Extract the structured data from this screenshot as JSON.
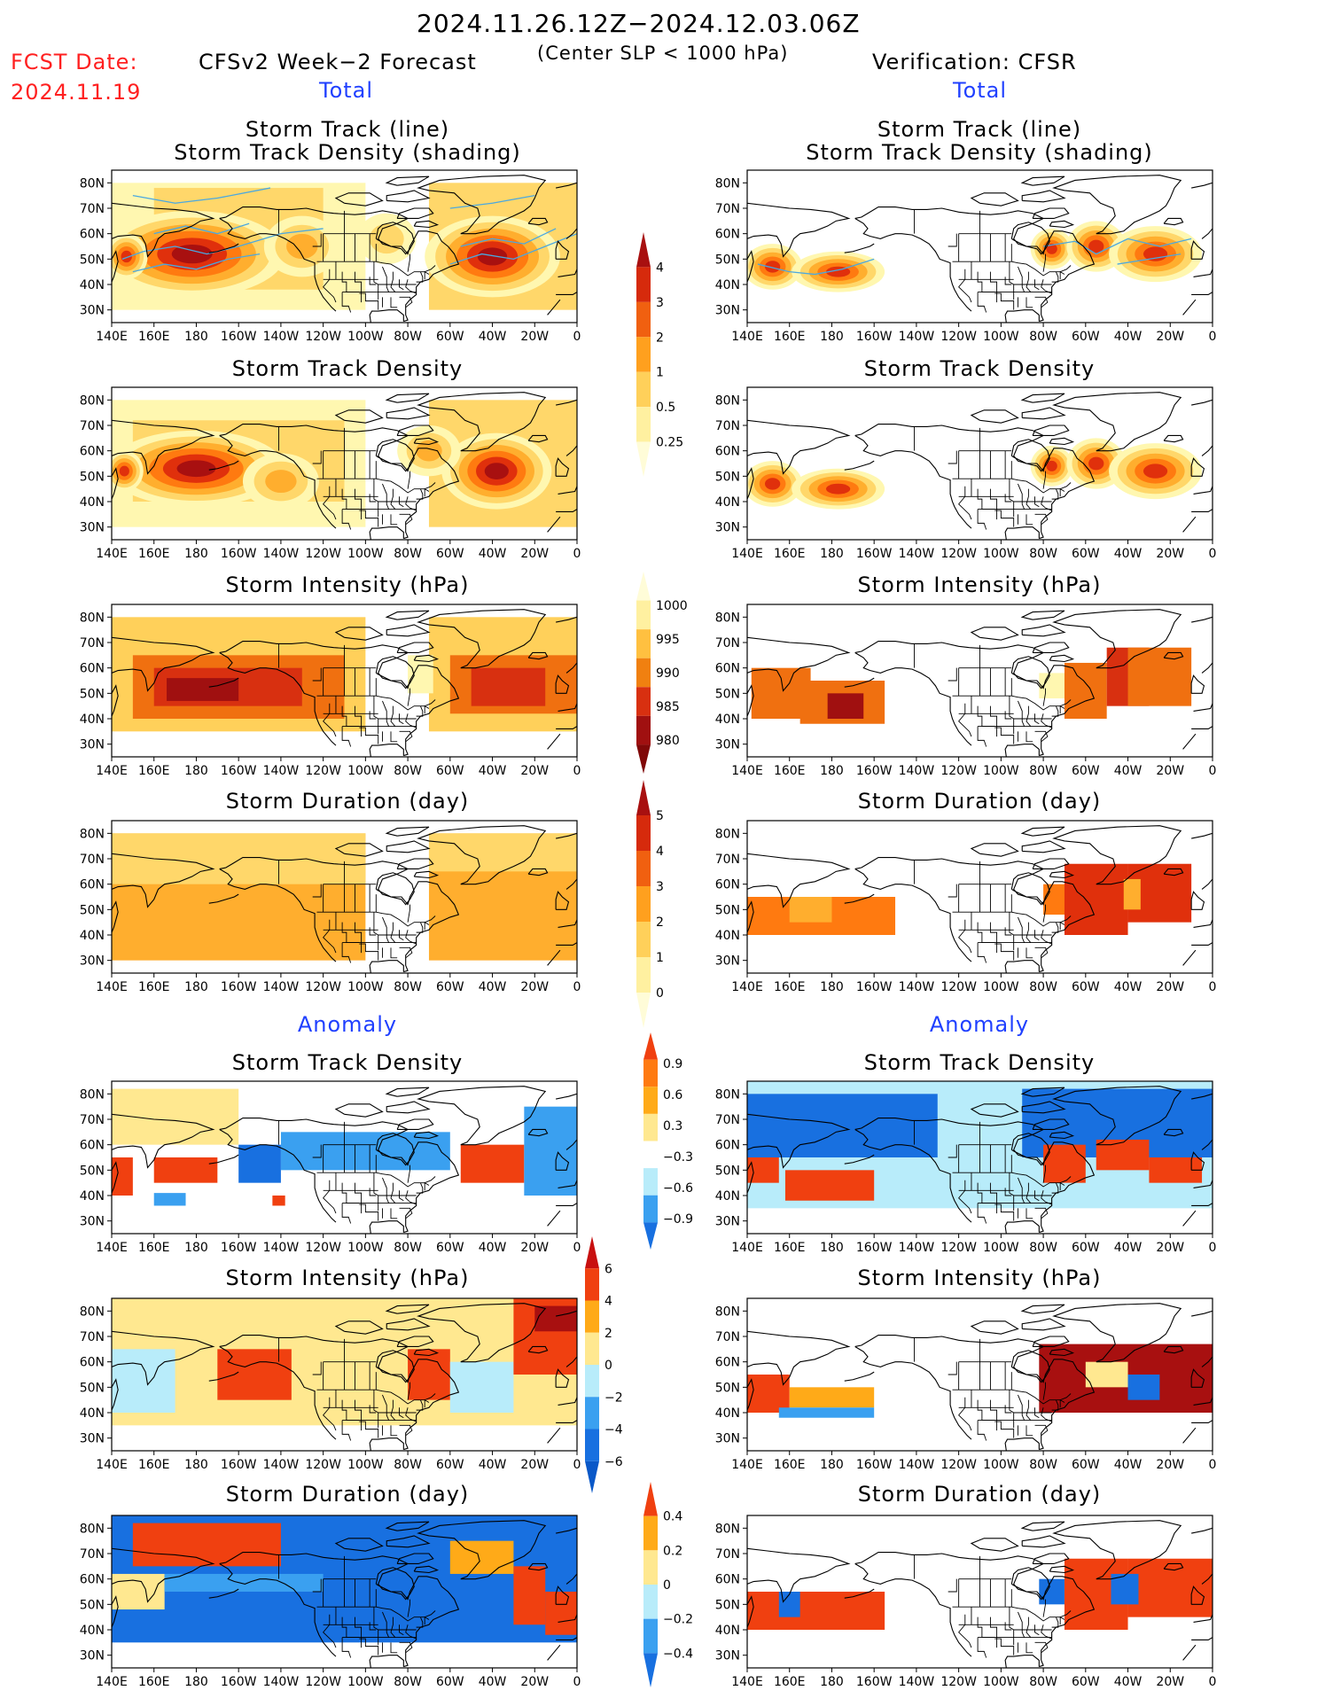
{
  "header": {
    "period": "2024.11.26.12Z−2024.12.03.06Z",
    "subtitle": "(Center SLP < 1000 hPa)",
    "fcst_label": "FCST Date:",
    "fcst_date": "2024.11.19",
    "left_model": "CFSv2 Week−2 Forecast",
    "right_model": "Verification: CFSR",
    "total_left": "Total",
    "total_right": "Total",
    "anomaly_left": "Anomaly",
    "anomaly_right": "Anomaly"
  },
  "panel_titles": {
    "track_line": "Storm Track (line)",
    "track_shading": "Storm Track Density (shading)",
    "density": "Storm Track Density",
    "intensity": "Storm Intensity (hPa)",
    "duration": "Storm Duration (day)"
  },
  "axes": {
    "lon_labels": [
      "140E",
      "160E",
      "180",
      "160W",
      "140W",
      "120W",
      "100W",
      "80W",
      "60W",
      "40W",
      "20W",
      "0"
    ],
    "lat_labels": [
      "80N",
      "70N",
      "60N",
      "50N",
      "40N",
      "30N"
    ]
  },
  "colorbars": {
    "density_total": [
      "4",
      "3",
      "2",
      "1",
      "0.5",
      "0.25"
    ],
    "intensity_total": [
      "1000",
      "995",
      "990",
      "985",
      "980"
    ],
    "duration_total": [
      "5",
      "4",
      "3",
      "2",
      "1",
      "0"
    ],
    "density_anom": [
      "0.9",
      "0.6",
      "0.3",
      "−0.3",
      "−0.6",
      "−0.9"
    ],
    "intensity_anom": [
      "6",
      "4",
      "2",
      "0",
      "−2",
      "−4",
      "−6"
    ],
    "duration_anom": [
      "0.4",
      "0.2",
      "0",
      "−0.2",
      "−0.4"
    ]
  },
  "colors": {
    "dens": [
      "#fff7b0",
      "#ffd76a",
      "#ffae2e",
      "#ff7a10",
      "#e0300c",
      "#a81010"
    ],
    "inten": [
      "#fff7b0",
      "#ffd05a",
      "#ffa020",
      "#f07010",
      "#d83010",
      "#a01010"
    ],
    "anom": [
      "#1870e0",
      "#3aa0f0",
      "#b8ecfa",
      "#ffffff",
      "#ffe890",
      "#ffaa18",
      "#f04010"
    ],
    "track_line": "#4aa8e0"
  }
}
